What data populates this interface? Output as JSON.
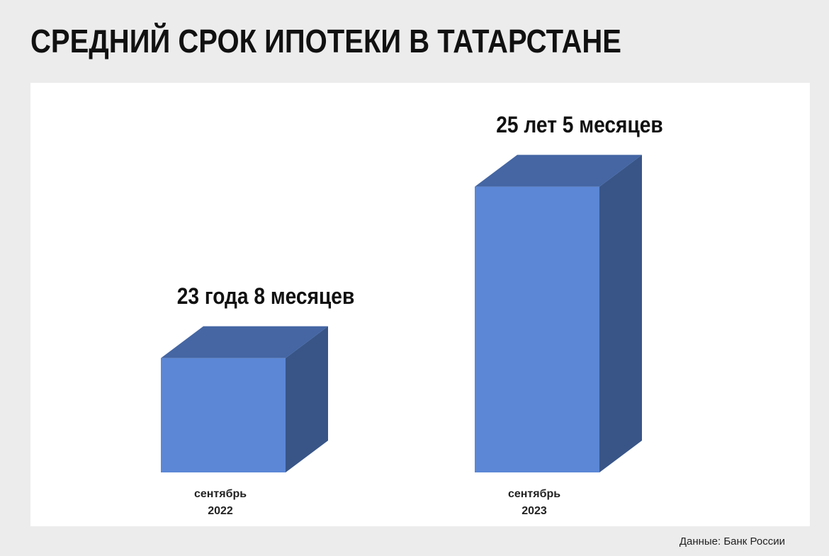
{
  "chart_data": {
    "type": "bar3d",
    "title": "СРЕДНИЙ СРОК ИПОТЕКИ В ТАТАРСТАНЕ",
    "categories": [
      "сентябрь\n2022",
      "сентябрь\n2023"
    ],
    "values": [
      284,
      305
    ],
    "value_labels": [
      "23 года 8 месяцев",
      "25 лет 5 месяцев"
    ],
    "color": "#5b87d6",
    "ylim": [
      270,
      310
    ],
    "source": "Данные: Банк России"
  }
}
